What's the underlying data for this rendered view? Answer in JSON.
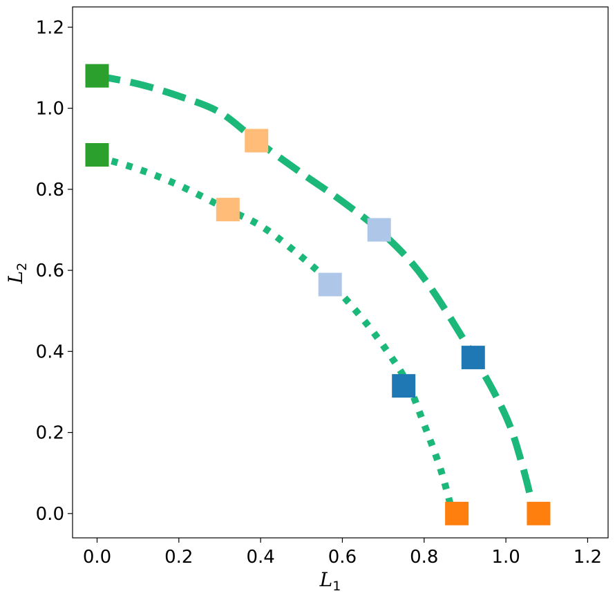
{
  "chart_data": {
    "type": "line",
    "xlabel": "L",
    "xlabel_sub": "1",
    "ylabel": "L",
    "ylabel_sub": "2",
    "xlim": [
      -0.06,
      1.25
    ],
    "ylim": [
      -0.06,
      1.25
    ],
    "xticks": [
      0.0,
      0.2,
      0.4,
      0.6,
      0.8,
      1.0,
      1.2
    ],
    "yticks": [
      0.0,
      0.2,
      0.4,
      0.6,
      0.8,
      1.0,
      1.2
    ],
    "xtick_labels": [
      "0.0",
      "0.2",
      "0.4",
      "0.6",
      "0.8",
      "1.0",
      "1.2"
    ],
    "ytick_labels": [
      "0.0",
      "0.2",
      "0.4",
      "0.6",
      "0.8",
      "1.0",
      "1.2"
    ],
    "grid": false,
    "curve_color": "#1bb87a",
    "series": [
      {
        "style": "dashed",
        "curve": [
          [
            0.0,
            1.08
          ],
          [
            0.1,
            1.06
          ],
          [
            0.2,
            1.03
          ],
          [
            0.3,
            0.99
          ],
          [
            0.39,
            0.92
          ],
          [
            0.5,
            0.84
          ],
          [
            0.6,
            0.77
          ],
          [
            0.7,
            0.69
          ],
          [
            0.8,
            0.58
          ],
          [
            0.92,
            0.39
          ],
          [
            1.0,
            0.24
          ],
          [
            1.04,
            0.12
          ],
          [
            1.07,
            0.0
          ]
        ],
        "markers": [
          {
            "x": 0.0,
            "y": 1.08,
            "color": "#2ca02c"
          },
          {
            "x": 0.39,
            "y": 0.92,
            "color": "#ffbb78"
          },
          {
            "x": 0.69,
            "y": 0.7,
            "color": "#aec7e8"
          },
          {
            "x": 0.92,
            "y": 0.385,
            "color": "#1f77b4"
          },
          {
            "x": 1.08,
            "y": 0.0,
            "color": "#ff7f0e"
          }
        ]
      },
      {
        "style": "dotted",
        "curve": [
          [
            0.0,
            0.88
          ],
          [
            0.1,
            0.85
          ],
          [
            0.2,
            0.81
          ],
          [
            0.32,
            0.75
          ],
          [
            0.4,
            0.71
          ],
          [
            0.48,
            0.65
          ],
          [
            0.57,
            0.57
          ],
          [
            0.65,
            0.48
          ],
          [
            0.71,
            0.4
          ],
          [
            0.76,
            0.32
          ],
          [
            0.8,
            0.22
          ],
          [
            0.84,
            0.11
          ],
          [
            0.87,
            0.0
          ]
        ],
        "markers": [
          {
            "x": 0.0,
            "y": 0.885,
            "color": "#2ca02c"
          },
          {
            "x": 0.32,
            "y": 0.75,
            "color": "#ffbb78"
          },
          {
            "x": 0.57,
            "y": 0.565,
            "color": "#aec7e8"
          },
          {
            "x": 0.75,
            "y": 0.315,
            "color": "#1f77b4"
          },
          {
            "x": 0.88,
            "y": 0.0,
            "color": "#ff7f0e"
          }
        ]
      }
    ]
  }
}
